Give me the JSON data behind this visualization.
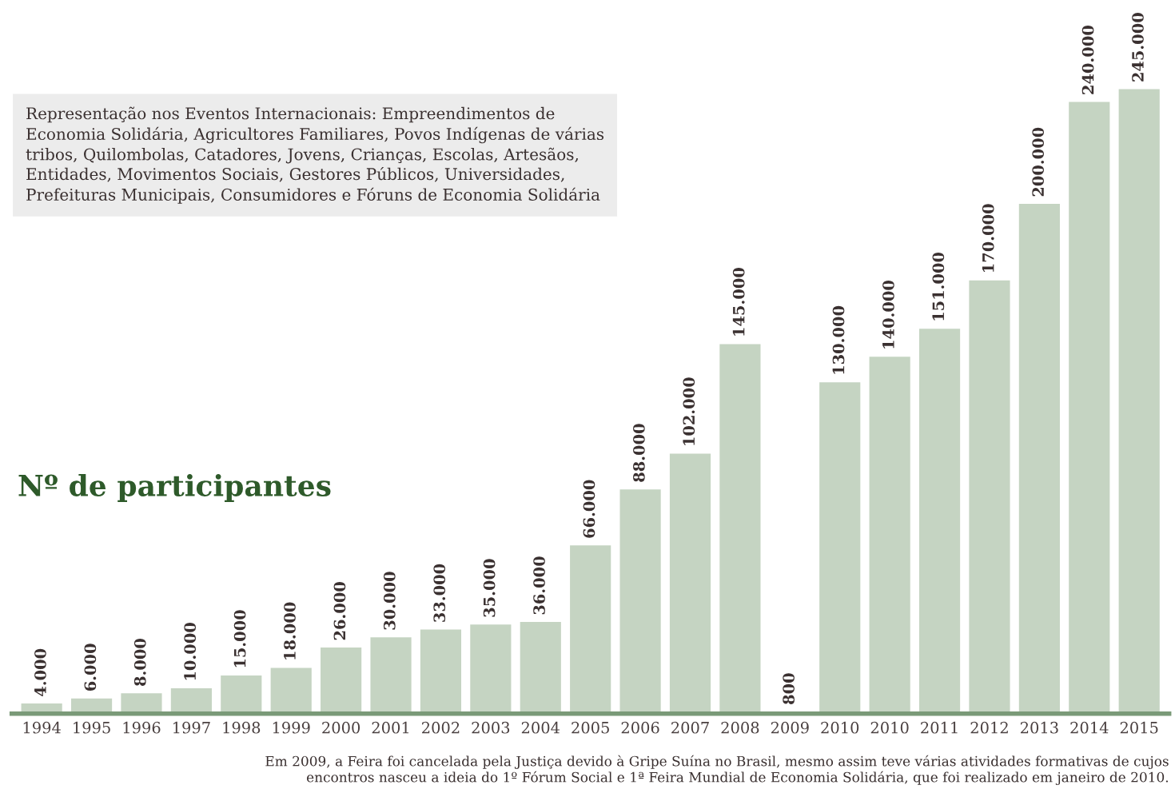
{
  "chart_data": {
    "type": "bar",
    "ylabel": "Nº de participantes",
    "categories": [
      "1994",
      "1995",
      "1996",
      "1997",
      "1998",
      "1999",
      "2000",
      "2001",
      "2002",
      "2003",
      "2004",
      "2005",
      "2006",
      "2007",
      "2008",
      "2009",
      "2010",
      "2010",
      "2011",
      "2012",
      "2013",
      "2014",
      "2015"
    ],
    "values": [
      4000,
      6000,
      8000,
      10000,
      15000,
      18000,
      26000,
      30000,
      33000,
      35000,
      36000,
      66000,
      88000,
      102000,
      145000,
      800,
      130000,
      140000,
      151000,
      170000,
      200000,
      240000,
      245000
    ],
    "value_labels": [
      "4.000",
      "6.000",
      "8.000",
      "10.000",
      "15.000",
      "18.000",
      "26.000",
      "30.000",
      "33.000",
      "35.000",
      "36.000",
      "66.000",
      "88.000",
      "102.000",
      "145.000",
      "800",
      "130.000",
      "140.000",
      "151.000",
      "170.000",
      "200.000",
      "240.000",
      "245.000"
    ],
    "color": "#c5d4c2",
    "annotations": [
      "Representação nos Eventos Internacionais: Empreendimentos de\nEconomia Solidária, Agricultores Familiares, Povos Indígenas de várias\ntribos, Quilombolas, Catadores, Jovens, Crianças, Escolas, Artesãos,\nEntidades, Movimentos Sociais, Gestores Públicos, Universidades,\nPrefeituras Municipais, Consumidores e Fóruns de Economia Solidária",
      "Em 2009, a Feira foi cancelada pela Justiça devido à Gripe Suína no Brasil, mesmo assim teve várias atividades formativas de cujos\nencontros nasceu a ideia do 1º Fórum Social e 1ª Feira Mundial de Economia Solidária, que foi realizado em janeiro de 2010."
    ],
    "grid": false,
    "legend": false
  }
}
